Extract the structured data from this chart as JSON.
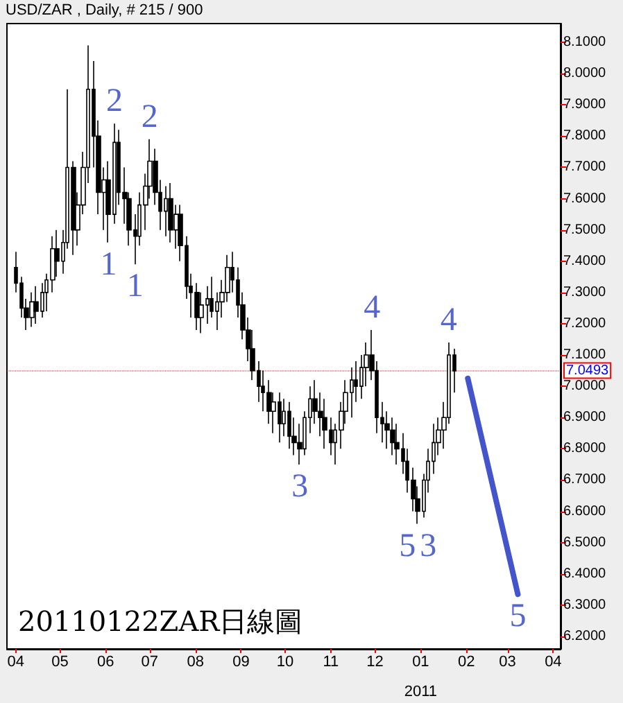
{
  "chart_data": {
    "type": "candlestick",
    "title": "USD/ZAR , Daily, # 215 / 900",
    "x": [
      "2010-04-01",
      "2010-04-05",
      "2010-04-08",
      "2010-04-12",
      "2010-04-15",
      "2010-04-19",
      "2010-04-22",
      "2010-04-26",
      "2010-04-29",
      "2010-05-03",
      "2010-05-06",
      "2010-05-10",
      "2010-05-13",
      "2010-05-17",
      "2010-05-20",
      "2010-05-24",
      "2010-05-27",
      "2010-05-31",
      "2010-06-03",
      "2010-06-07",
      "2010-06-10",
      "2010-06-14",
      "2010-06-17",
      "2010-06-21",
      "2010-06-24",
      "2010-06-28",
      "2010-07-01",
      "2010-07-05",
      "2010-07-08",
      "2010-07-12",
      "2010-07-15",
      "2010-07-19",
      "2010-07-22",
      "2010-07-26",
      "2010-07-29",
      "2010-08-02",
      "2010-08-05",
      "2010-08-09",
      "2010-08-12",
      "2010-08-16",
      "2010-08-19",
      "2010-08-23",
      "2010-08-26",
      "2010-08-30",
      "2010-09-02",
      "2010-09-06",
      "2010-09-09",
      "2010-09-13",
      "2010-09-16",
      "2010-09-20",
      "2010-09-23",
      "2010-09-27",
      "2010-09-30",
      "2010-10-04",
      "2010-10-07",
      "2010-10-11",
      "2010-10-14",
      "2010-10-18",
      "2010-10-21",
      "2010-10-25",
      "2010-10-28",
      "2010-11-01",
      "2010-11-04",
      "2010-11-08",
      "2010-11-11",
      "2010-11-15",
      "2010-11-18",
      "2010-11-22",
      "2010-11-25",
      "2010-11-29",
      "2010-12-02",
      "2010-12-06",
      "2010-12-09",
      "2010-12-13",
      "2010-12-16",
      "2010-12-20",
      "2010-12-23",
      "2010-12-27",
      "2010-12-30",
      "2011-01-03",
      "2011-01-06",
      "2011-01-10",
      "2011-01-13",
      "2011-01-17",
      "2011-01-20",
      "2011-01-24"
    ],
    "ohlc": [
      [
        7.38,
        7.43,
        7.3,
        7.33
      ],
      [
        7.33,
        7.35,
        7.22,
        7.25
      ],
      [
        7.25,
        7.28,
        7.18,
        7.22
      ],
      [
        7.22,
        7.3,
        7.19,
        7.27
      ],
      [
        7.27,
        7.32,
        7.2,
        7.24
      ],
      [
        7.24,
        7.33,
        7.22,
        7.3
      ],
      [
        7.3,
        7.36,
        7.24,
        7.34
      ],
      [
        7.34,
        7.48,
        7.3,
        7.44
      ],
      [
        7.44,
        7.5,
        7.35,
        7.4
      ],
      [
        7.4,
        7.5,
        7.36,
        7.46
      ],
      [
        7.46,
        7.95,
        7.44,
        7.7
      ],
      [
        7.7,
        7.72,
        7.42,
        7.5
      ],
      [
        7.5,
        7.62,
        7.45,
        7.58
      ],
      [
        7.58,
        7.75,
        7.55,
        7.7
      ],
      [
        7.7,
        8.09,
        7.65,
        7.95
      ],
      [
        7.95,
        8.04,
        7.7,
        7.8
      ],
      [
        7.8,
        7.85,
        7.55,
        7.62
      ],
      [
        7.62,
        7.7,
        7.5,
        7.66
      ],
      [
        7.66,
        7.72,
        7.46,
        7.55
      ],
      [
        7.55,
        7.84,
        7.52,
        7.78
      ],
      [
        7.78,
        7.82,
        7.58,
        7.62
      ],
      [
        7.62,
        7.7,
        7.52,
        7.6
      ],
      [
        7.6,
        7.62,
        7.45,
        7.5
      ],
      [
        7.5,
        7.55,
        7.39,
        7.48
      ],
      [
        7.48,
        7.62,
        7.45,
        7.58
      ],
      [
        7.58,
        7.68,
        7.5,
        7.64
      ],
      [
        7.64,
        7.79,
        7.6,
        7.72
      ],
      [
        7.72,
        7.76,
        7.58,
        7.62
      ],
      [
        7.62,
        7.66,
        7.5,
        7.56
      ],
      [
        7.56,
        7.64,
        7.48,
        7.6
      ],
      [
        7.6,
        7.65,
        7.46,
        7.5
      ],
      [
        7.5,
        7.58,
        7.44,
        7.55
      ],
      [
        7.55,
        7.58,
        7.4,
        7.45
      ],
      [
        7.45,
        7.48,
        7.28,
        7.32
      ],
      [
        7.32,
        7.36,
        7.22,
        7.3
      ],
      [
        7.3,
        7.33,
        7.18,
        7.22
      ],
      [
        7.22,
        7.3,
        7.17,
        7.26
      ],
      [
        7.26,
        7.32,
        7.2,
        7.28
      ],
      [
        7.28,
        7.35,
        7.22,
        7.24
      ],
      [
        7.24,
        7.3,
        7.18,
        7.27
      ],
      [
        7.27,
        7.34,
        7.22,
        7.3
      ],
      [
        7.3,
        7.42,
        7.27,
        7.38
      ],
      [
        7.38,
        7.43,
        7.3,
        7.34
      ],
      [
        7.34,
        7.38,
        7.22,
        7.26
      ],
      [
        7.26,
        7.3,
        7.15,
        7.18
      ],
      [
        7.18,
        7.22,
        7.08,
        7.12
      ],
      [
        7.12,
        7.18,
        7.02,
        7.05
      ],
      [
        7.05,
        7.08,
        6.95,
        7.0
      ],
      [
        7.0,
        7.05,
        6.92,
        6.98
      ],
      [
        6.98,
        7.02,
        6.88,
        6.92
      ],
      [
        6.92,
        6.98,
        6.85,
        6.95
      ],
      [
        6.95,
        6.98,
        6.82,
        6.88
      ],
      [
        6.88,
        6.96,
        6.84,
        6.92
      ],
      [
        6.92,
        6.95,
        6.8,
        6.84
      ],
      [
        6.84,
        6.9,
        6.78,
        6.82
      ],
      [
        6.82,
        6.88,
        6.75,
        6.8
      ],
      [
        6.8,
        6.92,
        6.78,
        6.9
      ],
      [
        6.9,
        7.0,
        6.85,
        6.96
      ],
      [
        6.96,
        7.02,
        6.88,
        6.92
      ],
      [
        6.92,
        6.98,
        6.84,
        6.9
      ],
      [
        6.9,
        6.96,
        6.8,
        6.86
      ],
      [
        6.86,
        6.9,
        6.78,
        6.82
      ],
      [
        6.82,
        6.88,
        6.75,
        6.86
      ],
      [
        6.86,
        6.95,
        6.8,
        6.92
      ],
      [
        6.92,
        7.02,
        6.88,
        6.98
      ],
      [
        6.98,
        7.06,
        6.9,
        7.02
      ],
      [
        7.02,
        7.08,
        6.95,
        7.0
      ],
      [
        7.0,
        7.1,
        6.96,
        7.06
      ],
      [
        7.06,
        7.14,
        7.0,
        7.1
      ],
      [
        7.1,
        7.18,
        7.02,
        7.05
      ],
      [
        7.05,
        7.08,
        6.85,
        6.9
      ],
      [
        6.9,
        6.95,
        6.82,
        6.88
      ],
      [
        6.88,
        6.92,
        6.8,
        6.86
      ],
      [
        6.86,
        6.9,
        6.78,
        6.82
      ],
      [
        6.82,
        6.88,
        6.75,
        6.8
      ],
      [
        6.8,
        6.85,
        6.72,
        6.76
      ],
      [
        6.76,
        6.8,
        6.66,
        6.7
      ],
      [
        6.7,
        6.74,
        6.6,
        6.64
      ],
      [
        6.64,
        6.68,
        6.56,
        6.6
      ],
      [
        6.6,
        6.72,
        6.58,
        6.7
      ],
      [
        6.7,
        6.8,
        6.66,
        6.76
      ],
      [
        6.76,
        6.88,
        6.72,
        6.82
      ],
      [
        6.82,
        6.9,
        6.78,
        6.86
      ],
      [
        6.86,
        6.95,
        6.8,
        6.9
      ],
      [
        6.9,
        7.14,
        6.88,
        7.1
      ],
      [
        7.1,
        7.12,
        6.98,
        7.0493
      ]
    ],
    "color": "#000000",
    "series": [
      {
        "type": "line",
        "color": "#4455cc",
        "x": [
          "2011-02-02",
          "2011-03-08"
        ],
        "values": [
          7.025,
          6.335
        ]
      }
    ],
    "xlim": [
      "2010-03-26",
      "2011-04-06"
    ],
    "xticks": [
      {
        "value": "2010-04-01",
        "label": "04"
      },
      {
        "value": "2010-05-01",
        "label": "05"
      },
      {
        "value": "2010-06-01",
        "label": "06"
      },
      {
        "value": "2010-07-01",
        "label": "07"
      },
      {
        "value": "2010-08-01",
        "label": "08"
      },
      {
        "value": "2010-09-01",
        "label": "09"
      },
      {
        "value": "2010-10-01",
        "label": "10"
      },
      {
        "value": "2010-11-01",
        "label": "11"
      },
      {
        "value": "2010-12-01",
        "label": "12"
      },
      {
        "value": "2011-01-01",
        "label": "01"
      },
      {
        "value": "2011-02-01",
        "label": "02"
      },
      {
        "value": "2011-03-01",
        "label": "03"
      },
      {
        "value": "2011-04-01",
        "label": "04"
      }
    ],
    "ylim": [
      6.16,
      8.16
    ],
    "yticks": [
      {
        "value": 6.2,
        "label": "6.2000"
      },
      {
        "value": 6.3,
        "label": "6.3000"
      },
      {
        "value": 6.4,
        "label": "6.4000"
      },
      {
        "value": 6.5,
        "label": "6.5000"
      },
      {
        "value": 6.6,
        "label": "6.6000"
      },
      {
        "value": 6.7,
        "label": "6.7000"
      },
      {
        "value": 6.8,
        "label": "6.8000"
      },
      {
        "value": 6.9,
        "label": "6.9000"
      },
      {
        "value": 7.0,
        "label": "7.0000"
      },
      {
        "value": 7.1,
        "label": "7.1000"
      },
      {
        "value": 7.2,
        "label": "7.2000"
      },
      {
        "value": 7.3,
        "label": "7.3000"
      },
      {
        "value": 7.4,
        "label": "7.4000"
      },
      {
        "value": 7.5,
        "label": "7.5000"
      },
      {
        "value": 7.6,
        "label": "7.6000"
      },
      {
        "value": 7.7,
        "label": "7.7000"
      },
      {
        "value": 7.8,
        "label": "7.8000"
      },
      {
        "value": 7.9,
        "label": "7.9000"
      },
      {
        "value": 8.0,
        "label": "8.0000"
      },
      {
        "value": 8.1,
        "label": "8.1000"
      }
    ],
    "ref_lines": [
      {
        "axis": "y",
        "value": 7.0493,
        "label": "7.0493",
        "color": "#ff0000"
      }
    ],
    "xlabel": "2011",
    "annotations": [
      {
        "text": "1",
        "x": "2010-06-03",
        "y": 7.46
      },
      {
        "text": "2",
        "x": "2010-06-07",
        "y": 7.84
      },
      {
        "text": "1",
        "x": "2010-06-21",
        "y": 7.39
      },
      {
        "text": "2",
        "x": "2010-07-01",
        "y": 7.79
      },
      {
        "text": "3",
        "x": "2010-10-11",
        "y": 6.75
      },
      {
        "text": "4",
        "x": "2010-11-29",
        "y": 7.18
      },
      {
        "text": "5",
        "x": "2010-12-30",
        "y": 6.56
      },
      {
        "text": "3",
        "x": "2010-12-30",
        "y": 6.56
      },
      {
        "text": "4",
        "x": "2011-01-20",
        "y": 7.14
      },
      {
        "text": "5",
        "x": "2011-03-08",
        "y": 6.335
      },
      "20110122ZAR日線圖"
    ],
    "grid": false
  }
}
